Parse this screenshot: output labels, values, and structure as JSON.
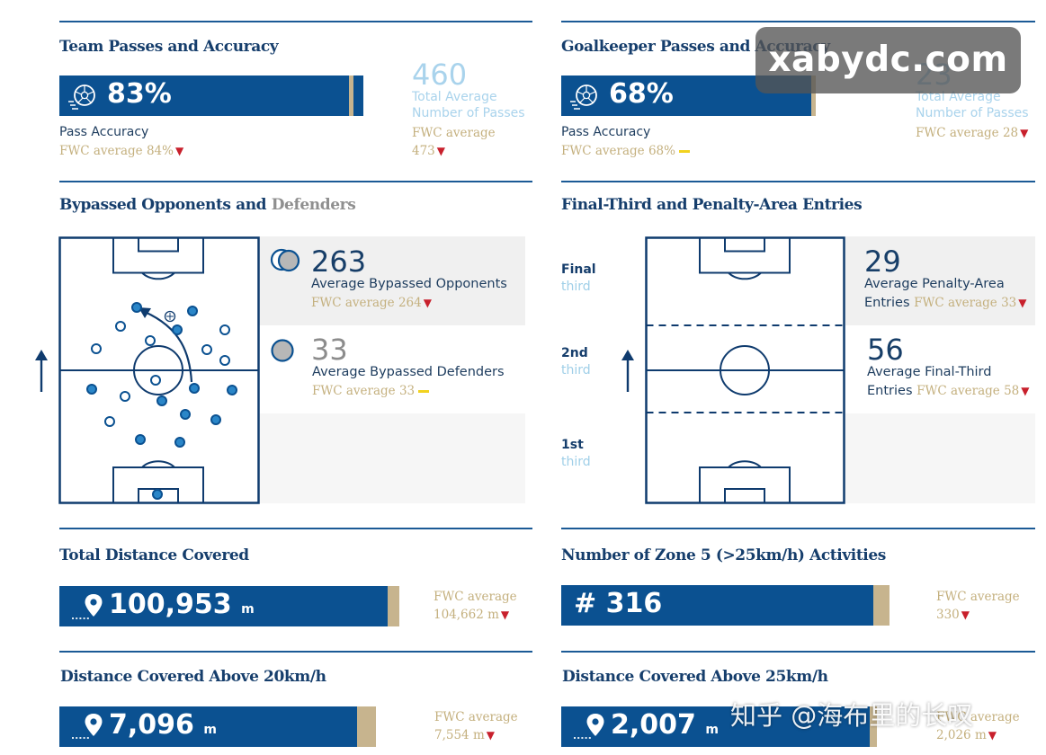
{
  "team_passes": {
    "title": "Team Passes and Accuracy",
    "pass_accuracy_value": "83%",
    "pass_accuracy_fraction": 0.83,
    "pass_accuracy_label": "Pass Accuracy",
    "pass_accuracy_fwc": "FWC average 84%",
    "total_passes_value": "460",
    "total_passes_label_1": "Total Average",
    "total_passes_label_2": "Number of Passes",
    "total_passes_fwc_label": "FWC average",
    "total_passes_fwc_value": "473",
    "icon": "football-icon"
  },
  "goalkeeper_passes": {
    "title": "Goalkeeper Passes and Accuracy",
    "pass_accuracy_value": "68%",
    "pass_accuracy_fraction": 0.68,
    "pass_accuracy_label": "Pass Accuracy",
    "pass_accuracy_fwc": "FWC average 68%",
    "total_passes_value": "23",
    "total_passes_label_1": "Total Average",
    "total_passes_label_2": "Number of Passes",
    "total_passes_fwc": "FWC average 28"
  },
  "bypassed": {
    "title_main": "Bypassed Opponents and",
    "title_grey": "Defenders",
    "opponents_value": "263",
    "opponents_label": "Average Bypassed Opponents",
    "opponents_fwc": "FWC average 264",
    "defenders_value": "33",
    "defenders_label": "Average Bypassed Defenders",
    "defenders_fwc": "FWC average 33"
  },
  "entries": {
    "title": "Final-Third and Penalty-Area Entries",
    "zone_final_1": "Final",
    "zone_final_2": "third",
    "zone_2nd_1": "2nd",
    "zone_2nd_2": "third",
    "zone_1st_1": "1st",
    "zone_1st_2": "third",
    "penalty_value": "29",
    "penalty_label_1": "Average Penalty-Area",
    "penalty_label_2": "Entries",
    "penalty_fwc": "FWC average 33",
    "final_third_value": "56",
    "final_third_label_1": "Average Final-Third",
    "final_third_label_2": "Entries",
    "final_third_fwc": "FWC average 58"
  },
  "total_distance": {
    "title": "Total Distance Covered",
    "value": "100,953",
    "unit": "m",
    "fwc_label": "FWC average",
    "fwc_value": "104,662 m"
  },
  "zone5": {
    "title": "Number of Zone 5 (>25km/h) Activities",
    "value": "# 316",
    "fwc_label": "FWC average",
    "fwc_value": "330"
  },
  "distance_20": {
    "title": "Distance Covered Above 20km/h",
    "value": "7,096",
    "unit": "m",
    "fwc_label": "FWC average",
    "fwc_value": "7,554 m"
  },
  "distance_25": {
    "title": "Distance Covered Above 25km/h",
    "value": "2,007",
    "unit": "m",
    "fwc_label": "FWC average",
    "fwc_value": "2,026 m"
  },
  "watermarks": {
    "site": "xabydc.com",
    "author": "知乎 @海布里的长叹"
  },
  "colors": {
    "brand_blue": "#0b5191",
    "gold": "#c4b07e",
    "light_blue": "#a9d3ec",
    "decrease_red": "#c8202c",
    "equal_yellow": "#f2d21f"
  }
}
